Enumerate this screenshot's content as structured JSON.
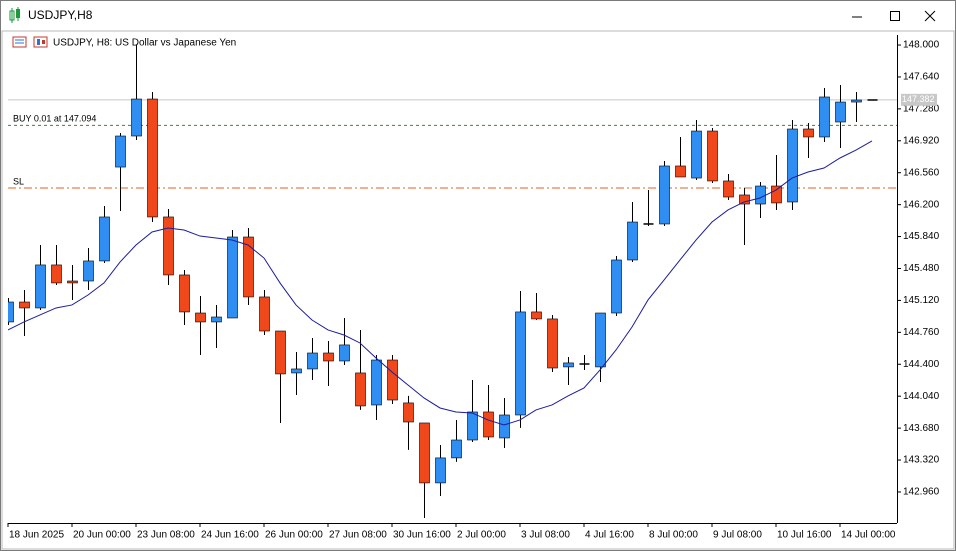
{
  "window": {
    "title": "USDJPY,H8"
  },
  "chart_data": {
    "type": "candlestick",
    "title": "USDJPY, H8:  US Dollar vs Japanese Yen",
    "categories": [
      "18 Jun 2025",
      null,
      null,
      null,
      "20 Jun 00:00",
      null,
      null,
      null,
      "23 Jun 08:00",
      null,
      null,
      null,
      "24 Jun 16:00",
      null,
      null,
      null,
      "26 Jun 00:00",
      null,
      null,
      null,
      "27 Jun 08:00",
      null,
      null,
      null,
      "30 Jun 16:00",
      null,
      null,
      null,
      "2 Jul 00:00",
      null,
      null,
      null,
      "3 Jul 08:00",
      null,
      null,
      null,
      "4 Jul 16:00",
      null,
      null,
      null,
      "8 Jul 00:00",
      null,
      null,
      null,
      "9 Jul 08:00",
      null,
      null,
      null,
      "10 Jul 16:00",
      null,
      null,
      null,
      "14 Jul 00:00",
      null,
      null
    ],
    "open": [
      144.877,
      145.102,
      145.035,
      145.52,
      145.339,
      145.339,
      145.565,
      146.624,
      146.974,
      147.391,
      146.061,
      145.407,
      144.978,
      144.877,
      144.922,
      145.835,
      145.159,
      144.775,
      144.302,
      144.347,
      144.527,
      144.437,
      144.302,
      143.941,
      144.448,
      143.964,
      143.738,
      143.062,
      143.344,
      143.546,
      143.862,
      143.569,
      143.828,
      144.99,
      144.911,
      144.37,
      144.403,
      144.37,
      144.978,
      145.576,
      145.982,
      145.982,
      146.636,
      146.5,
      147.03,
      146.467,
      146.309,
      146.207,
      146.41,
      146.23,
      147.053,
      146.963,
      147.132,
      147.357,
      147.38
    ],
    "high": [
      145.147,
      145.238,
      145.745,
      145.745,
      145.52,
      145.711,
      146.185,
      147.008,
      148.0,
      147.47,
      146.151,
      145.463,
      145.17,
      145.069,
      145.914,
      145.937,
      145.238,
      144.775,
      144.539,
      144.696,
      144.663,
      144.922,
      144.787,
      144.505,
      144.505,
      144.043,
      143.738,
      143.49,
      143.772,
      144.223,
      144.166,
      144.02,
      145.226,
      145.204,
      144.956,
      144.482,
      144.505,
      144.978,
      145.621,
      146.23,
      146.365,
      146.692,
      146.963,
      147.154,
      147.064,
      146.546,
      146.388,
      146.455,
      146.76,
      147.154,
      147.121,
      147.515,
      147.549,
      147.47,
      147.38
    ],
    "low": [
      144.843,
      144.719,
      145.012,
      145.294,
      145.125,
      145.238,
      145.542,
      146.128,
      146.929,
      146.004,
      145.294,
      144.843,
      144.505,
      144.584,
      144.922,
      145.069,
      144.73,
      143.738,
      144.054,
      144.223,
      144.155,
      144.392,
      143.885,
      143.772,
      143.952,
      143.434,
      142.667,
      142.915,
      143.299,
      143.524,
      143.546,
      143.456,
      143.682,
      144.899,
      144.313,
      144.166,
      144.336,
      144.2,
      144.944,
      145.553,
      145.959,
      145.959,
      146.512,
      146.478,
      146.444,
      146.252,
      145.745,
      146.049,
      146.14,
      146.14,
      146.726,
      146.906,
      146.839,
      147.132,
      147.38
    ],
    "close": [
      145.102,
      145.035,
      145.52,
      145.317,
      145.317,
      145.565,
      146.061,
      146.974,
      147.391,
      146.061,
      145.407,
      144.99,
      144.877,
      144.933,
      145.835,
      145.159,
      144.775,
      144.291,
      144.347,
      144.527,
      144.437,
      144.618,
      143.93,
      144.448,
      143.997,
      143.749,
      143.062,
      143.344,
      143.546,
      143.862,
      143.58,
      143.828,
      144.99,
      144.911,
      144.358,
      144.415,
      144.403,
      144.978,
      145.576,
      146.004,
      145.982,
      146.636,
      146.512,
      147.03,
      146.467,
      146.286,
      146.207,
      146.41,
      146.219,
      147.053,
      146.963,
      147.414,
      147.357,
      147.38,
      147.38
    ],
    "up_color": "#2e8ef2",
    "down_color": "#f0481a",
    "ma": {
      "color": "#1c1c9c",
      "values": [
        144.787,
        144.877,
        144.956,
        145.035,
        145.069,
        145.181,
        145.317,
        145.553,
        145.745,
        145.892,
        145.937,
        145.914,
        145.846,
        145.824,
        145.801,
        145.745,
        145.598,
        145.317,
        145.069,
        144.899,
        144.787,
        144.73,
        144.64,
        144.471,
        144.313,
        144.166,
        144.02,
        143.907,
        143.862,
        143.851,
        143.772,
        143.715,
        143.772,
        143.885,
        143.941,
        144.043,
        144.133,
        144.336,
        144.561,
        144.82,
        145.125,
        145.35,
        145.576,
        145.801,
        146.004,
        146.14,
        146.23,
        146.275,
        146.365,
        146.5,
        146.568,
        146.613,
        146.726,
        146.816,
        146.918
      ]
    },
    "levels": [
      {
        "label": "BUY 0.01 at 147.094",
        "value": 147.094,
        "color": "#2e8b3e",
        "style": "dashed"
      },
      {
        "label": "SL",
        "value": 146.388,
        "color": "#e0622a",
        "style": "dashdot"
      }
    ],
    "current_price": {
      "value": 147.382,
      "label": "147.382"
    },
    "ylim": [
      142.61,
      148.113
    ],
    "yticks": [
      {
        "value": 148,
        "label": "148.000"
      },
      {
        "value": 147.64,
        "label": "147.640"
      },
      {
        "value": 147.28,
        "label": "147.280"
      },
      {
        "value": 146.92,
        "label": "146.920"
      },
      {
        "value": 146.56,
        "label": "146.560"
      },
      {
        "value": 146.2,
        "label": "146.200"
      },
      {
        "value": 145.84,
        "label": "145.840"
      },
      {
        "value": 145.48,
        "label": "145.480"
      },
      {
        "value": 145.12,
        "label": "145.120"
      },
      {
        "value": 144.76,
        "label": "144.760"
      },
      {
        "value": 144.4,
        "label": "144.400"
      },
      {
        "value": 144.04,
        "label": "144.040"
      },
      {
        "value": 143.68,
        "label": "143.680"
      },
      {
        "value": 143.32,
        "label": "143.320"
      },
      {
        "value": 142.96,
        "label": "142.960"
      }
    ],
    "grid": false
  }
}
